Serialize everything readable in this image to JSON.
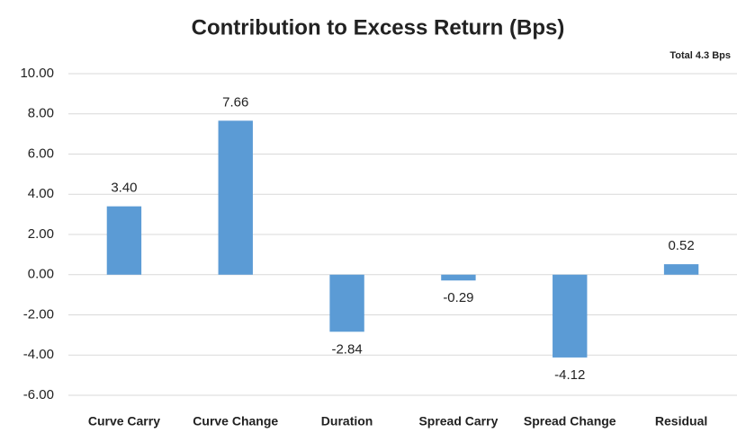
{
  "chart_data": {
    "type": "bar",
    "title": "Contribution to Excess Return (Bps)",
    "annotation": "Total 4.3 Bps",
    "categories": [
      "Curve Carry",
      "Curve Change",
      "Duration",
      "Spread Carry",
      "Spread Change",
      "Residual"
    ],
    "values": [
      3.4,
      7.66,
      -2.84,
      -0.29,
      -4.12,
      0.52
    ],
    "value_labels": [
      "3.40",
      "7.66",
      "-2.84",
      "-0.29",
      "-4.12",
      "0.52"
    ],
    "color": "#5b9bd5",
    "ylim": [
      -6,
      10
    ],
    "yticks": [
      {
        "value": -6,
        "label": "-6.00"
      },
      {
        "value": -4,
        "label": "-4.00"
      },
      {
        "value": -2,
        "label": "-2.00"
      },
      {
        "value": 0,
        "label": "0.00"
      },
      {
        "value": 2,
        "label": "2.00"
      },
      {
        "value": 4,
        "label": "4.00"
      },
      {
        "value": 6,
        "label": "6.00"
      },
      {
        "value": 8,
        "label": "8.00"
      },
      {
        "value": 10,
        "label": "10.00"
      }
    ],
    "grid": true
  }
}
